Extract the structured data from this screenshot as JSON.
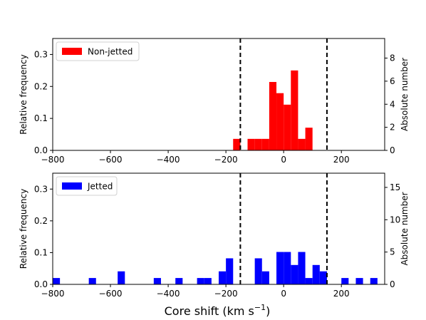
{
  "figure": {
    "xlabel_main": "Core shift (km s",
    "xlabel_sup": "−1",
    "xlabel_close": ")"
  },
  "chart_data": [
    {
      "type": "bar",
      "subplot": "top",
      "legend": {
        "label": "Non-jetted",
        "color": "#ff0000",
        "position": "top-left"
      },
      "xlim": [
        -800,
        350
      ],
      "xticks": [
        -800,
        -600,
        -400,
        -200,
        0,
        200
      ],
      "xtick_labels": [
        "−800",
        "−600",
        "−400",
        "−200",
        "0",
        "200"
      ],
      "ylim": [
        0,
        0.35
      ],
      "yticks": [
        0.0,
        0.1,
        0.2,
        0.3
      ],
      "ytick_labels": [
        "0.0",
        "0.1",
        "0.2",
        "0.3"
      ],
      "ylabel": "Relative frequency",
      "ylabel_right": "Absolute number",
      "y2lim": [
        0,
        9.7
      ],
      "y2ticks": [
        0,
        2,
        4,
        6,
        8
      ],
      "y2tick_labels": [
        "0",
        "2",
        "4",
        "6",
        "8"
      ],
      "vlines": [
        -150,
        150
      ],
      "bin_width": 25,
      "bars": [
        {
          "x": -175,
          "value": 0.036
        },
        {
          "x": -125,
          "value": 0.036
        },
        {
          "x": -100,
          "value": 0.036
        },
        {
          "x": -75,
          "value": 0.036
        },
        {
          "x": -50,
          "value": 0.214
        },
        {
          "x": -25,
          "value": 0.179
        },
        {
          "x": 0,
          "value": 0.143
        },
        {
          "x": 25,
          "value": 0.25
        },
        {
          "x": 50,
          "value": 0.036
        },
        {
          "x": 75,
          "value": 0.071
        }
      ]
    },
    {
      "type": "bar",
      "subplot": "bottom",
      "legend": {
        "label": "Jetted",
        "color": "#0000ff",
        "position": "top-left"
      },
      "xlim": [
        -800,
        350
      ],
      "xticks": [
        -800,
        -600,
        -400,
        -200,
        0,
        200
      ],
      "xtick_labels": [
        "−800",
        "−600",
        "−400",
        "−200",
        "0",
        "200"
      ],
      "ylim": [
        0,
        0.35
      ],
      "yticks": [
        0.0,
        0.1,
        0.2,
        0.3
      ],
      "ytick_labels": [
        "0.0",
        "0.1",
        "0.2",
        "0.3"
      ],
      "ylabel": "Relative frequency",
      "ylabel_right": "Absolute number",
      "y2lim": [
        0,
        17.2
      ],
      "y2ticks": [
        0,
        5,
        10,
        15
      ],
      "y2tick_labels": [
        "0",
        "5",
        "10",
        "15"
      ],
      "vlines": [
        -150,
        150
      ],
      "bin_width": 25,
      "bars": [
        {
          "x": -800,
          "value": 0.02
        },
        {
          "x": -675,
          "value": 0.02
        },
        {
          "x": -575,
          "value": 0.041
        },
        {
          "x": -450,
          "value": 0.02
        },
        {
          "x": -375,
          "value": 0.02
        },
        {
          "x": -300,
          "value": 0.02
        },
        {
          "x": -275,
          "value": 0.02
        },
        {
          "x": -225,
          "value": 0.041
        },
        {
          "x": -200,
          "value": 0.082
        },
        {
          "x": -100,
          "value": 0.082
        },
        {
          "x": -75,
          "value": 0.041
        },
        {
          "x": -25,
          "value": 0.102
        },
        {
          "x": 0,
          "value": 0.102
        },
        {
          "x": 25,
          "value": 0.061
        },
        {
          "x": 50,
          "value": 0.102
        },
        {
          "x": 75,
          "value": 0.02
        },
        {
          "x": 100,
          "value": 0.061
        },
        {
          "x": 125,
          "value": 0.041
        },
        {
          "x": 200,
          "value": 0.02
        },
        {
          "x": 250,
          "value": 0.02
        },
        {
          "x": 300,
          "value": 0.02
        }
      ]
    }
  ]
}
